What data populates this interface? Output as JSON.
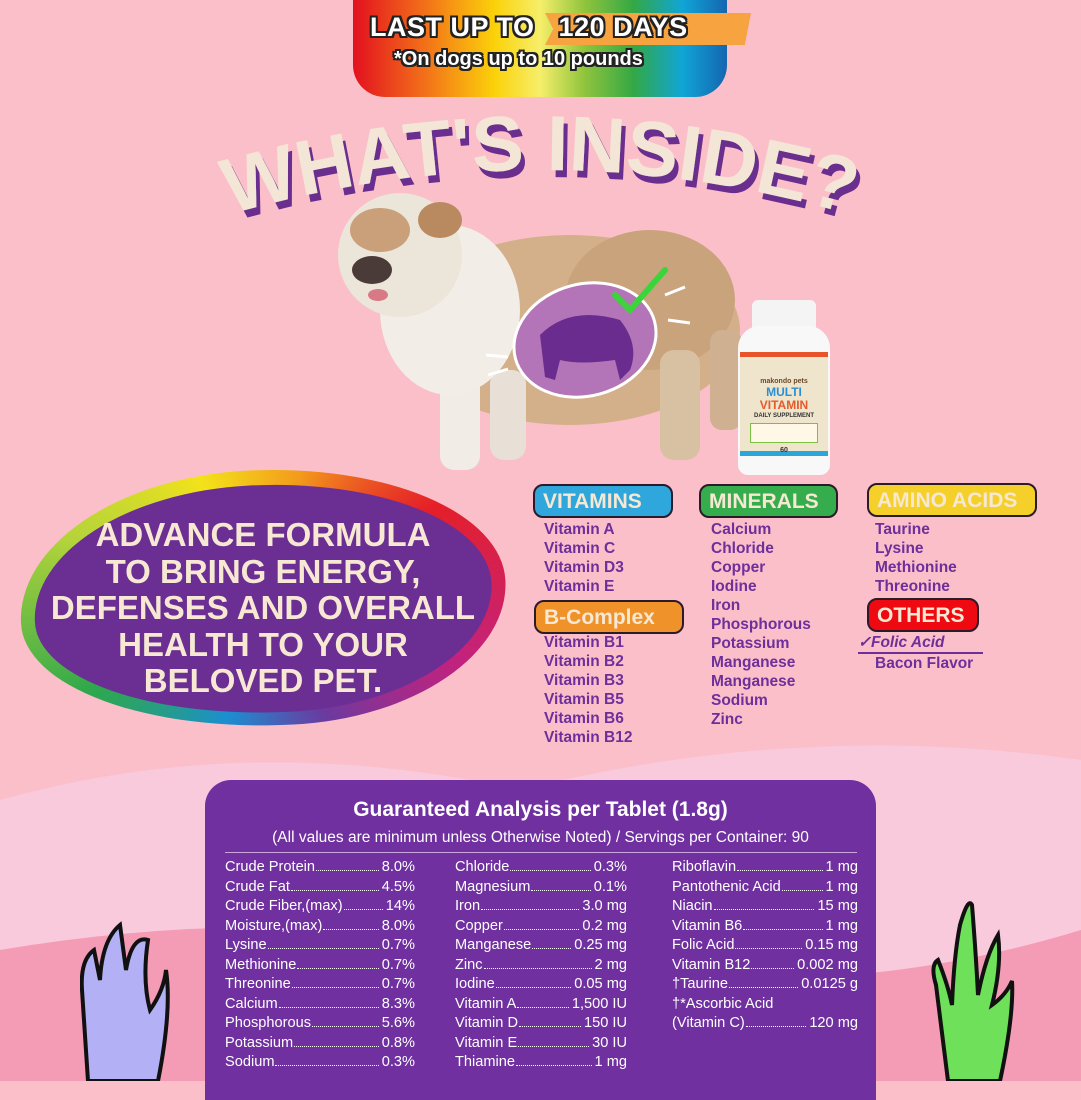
{
  "banner": {
    "line1_a": "LAST UP TO",
    "line1_b": "120 DAYS",
    "line2": "*On dogs up to 10 pounds"
  },
  "title": "WHAT'S INSIDE?",
  "bottle": {
    "brand": "makondo pets",
    "name1": "MULTI",
    "name2": "VITAMIN",
    "subtitle": "DAILY SUPPLEMENT",
    "count": "60"
  },
  "slogan": [
    "ADVANCE FORMULA",
    "TO BRING ENERGY,",
    "DEFENSES AND OVERALL",
    "HEALTH TO YOUR",
    "BELOVED PET."
  ],
  "categories": {
    "vitamins": {
      "label": "VITAMINS",
      "color": "#2fa7dd",
      "items": [
        "Vitamin A",
        "Vitamin C",
        "Vitamin D3",
        "Vitamin E"
      ]
    },
    "b_complex": {
      "label": "B-Complex",
      "color": "#f0922a",
      "items": [
        "Vitamin B1",
        "Vitamin B2",
        "Vitamin B3",
        "Vitamin B5",
        "Vitamin B6",
        "Vitamin B12"
      ]
    },
    "minerals": {
      "label": "MINERALS",
      "color": "#36ad4c",
      "items": [
        "Calcium",
        "Chloride",
        "Copper",
        "Iodine",
        "Iron",
        "Phosphorous",
        "Potassium",
        "Manganese",
        "Manganese",
        "Sodium",
        "Zinc"
      ]
    },
    "amino_acids": {
      "label": "AMINO ACIDS",
      "color": "#f6d02a",
      "items": [
        "Taurine",
        "Lysine",
        "Methionine",
        "Threonine"
      ]
    },
    "others": {
      "label": "OTHERS",
      "color": "#ee0a10",
      "items": [
        "Folic Acid",
        "Bacon Flavor"
      ]
    }
  },
  "analysis": {
    "title": "Guaranteed Analysis per Tablet (1.8g)",
    "subtitle": "(All values are minimum unless Otherwise Noted) / Servings per Container: 90",
    "columns": [
      [
        [
          "Crude Protein",
          "8.0%"
        ],
        [
          "Crude Fat",
          "4.5%"
        ],
        [
          "Crude Fiber,(max)",
          "14%"
        ],
        [
          "Moisture,(max)",
          "8.0%"
        ],
        [
          "Lysine",
          "0.7%"
        ],
        [
          "Methionine",
          "0.7%"
        ],
        [
          "Threonine",
          "0.7%"
        ],
        [
          "Calcium",
          "8.3%"
        ],
        [
          "Phosphorous",
          "5.6%"
        ],
        [
          "Potassium",
          "0.8%"
        ],
        [
          "Sodium",
          "0.3%"
        ]
      ],
      [
        [
          "Chloride",
          "0.3%"
        ],
        [
          "Magnesium",
          "0.1%"
        ],
        [
          "Iron",
          "3.0 mg"
        ],
        [
          "Copper",
          "0.2 mg"
        ],
        [
          "Manganese",
          "0.25 mg"
        ],
        [
          "Zinc",
          "2 mg"
        ],
        [
          "Iodine",
          "0.05 mg"
        ],
        [
          "Vitamin A",
          "1,500 IU"
        ],
        [
          "Vitamin D",
          "150 IU"
        ],
        [
          "Vitamin E",
          "30 IU"
        ],
        [
          "Thiamine",
          "1 mg"
        ]
      ],
      [
        [
          "Riboflavin",
          "1 mg"
        ],
        [
          "Pantothenic Acid",
          "1 mg"
        ],
        [
          "Niacin",
          "15 mg"
        ],
        [
          "Vitamin B6",
          "1 mg"
        ],
        [
          "Folic Acid",
          "0.15 mg"
        ],
        [
          "Vitamin B12",
          "0.002 mg"
        ],
        [
          "†Taurine",
          "0.0125 g"
        ],
        [
          "†*Ascorbic Acid",
          ""
        ],
        [
          "(Vitamin C)",
          "120 mg"
        ]
      ]
    ]
  }
}
